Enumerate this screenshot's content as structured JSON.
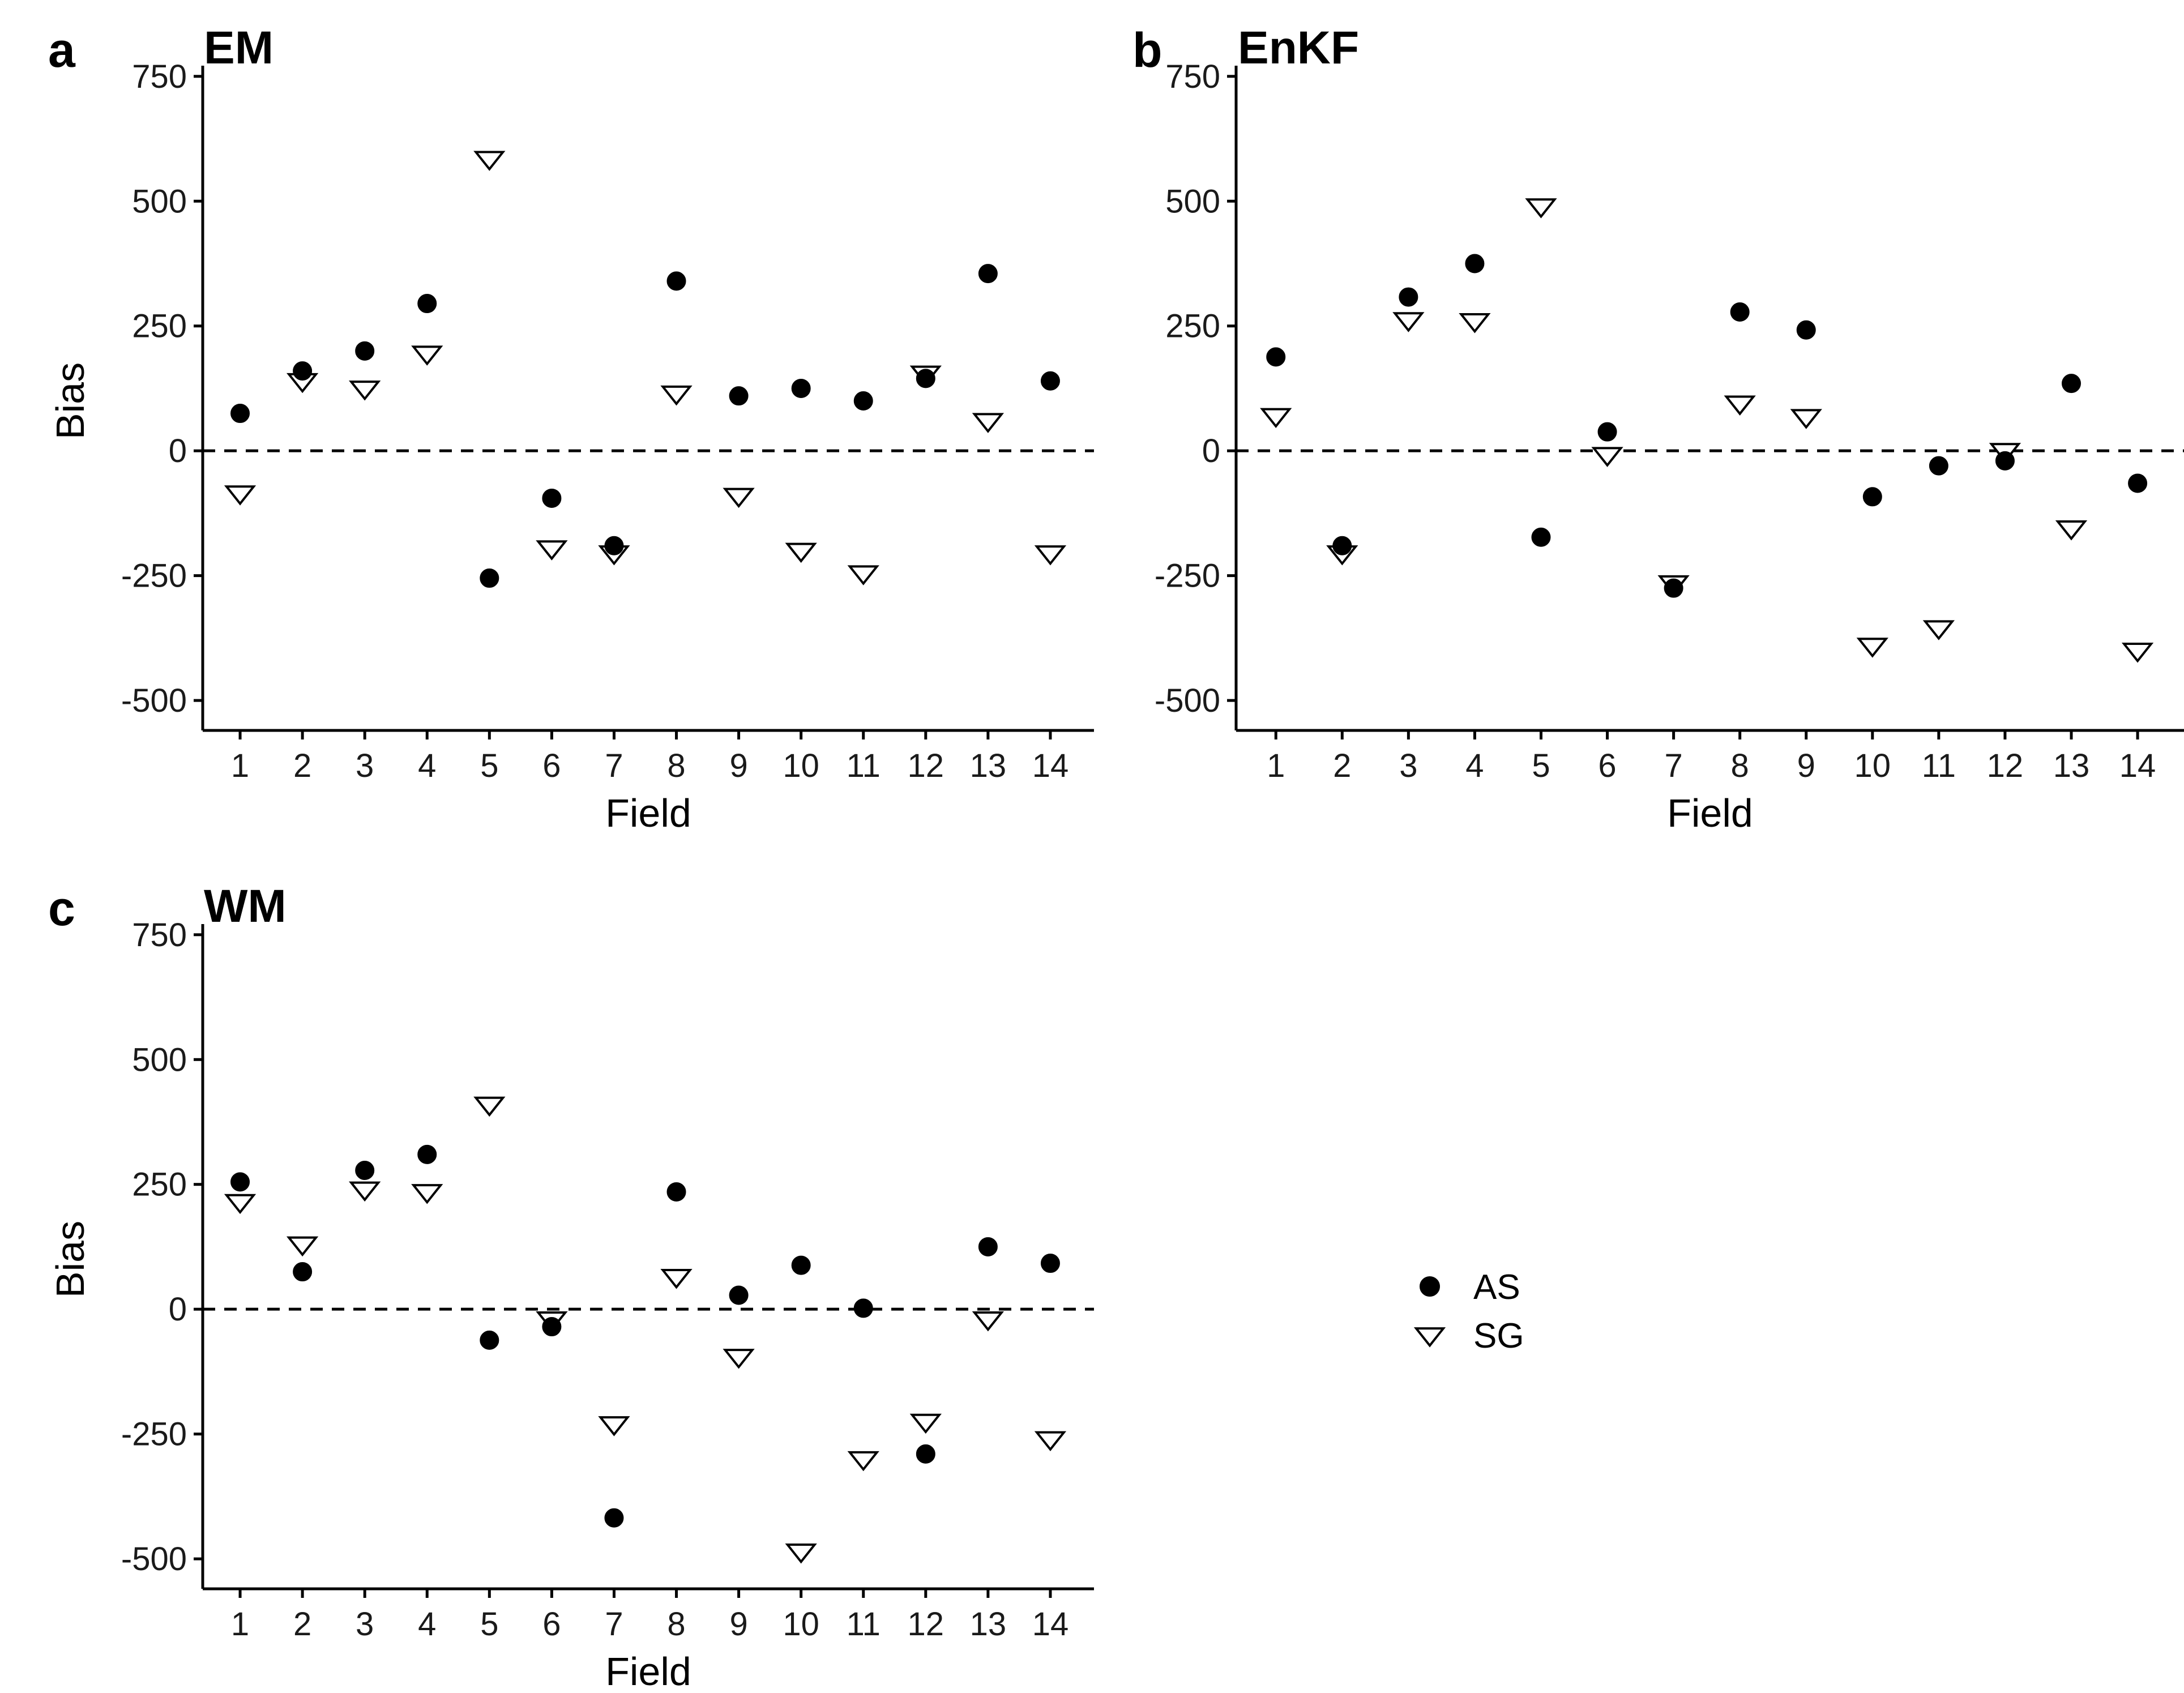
{
  "chart_data": [
    {
      "panel": "a",
      "title": "EM",
      "type": "scatter",
      "xlabel": "Field",
      "ylabel": "Bias",
      "ylim": [
        -560,
        760
      ],
      "yticks": [
        -500,
        -250,
        0,
        250,
        500,
        750
      ],
      "reference_line": 0,
      "categories": [
        "1",
        "2",
        "3",
        "4",
        "5",
        "6",
        "7",
        "8",
        "9",
        "10",
        "11",
        "12",
        "13",
        "14"
      ],
      "series": [
        {
          "name": "AS",
          "marker": "filled-circle",
          "values": [
            75,
            160,
            200,
            295,
            -255,
            -95,
            -190,
            340,
            110,
            125,
            100,
            145,
            355,
            140
          ]
        },
        {
          "name": "SG",
          "marker": "open-triangle-down",
          "values": [
            -85,
            140,
            125,
            195,
            585,
            -195,
            -205,
            115,
            -90,
            -200,
            -245,
            155,
            60,
            -205
          ]
        }
      ]
    },
    {
      "panel": "b",
      "title": "EnKF",
      "type": "scatter",
      "xlabel": "Field",
      "ylabel": "",
      "ylim": [
        -560,
        760
      ],
      "yticks": [
        -500,
        -250,
        0,
        250,
        500,
        750
      ],
      "reference_line": 0,
      "categories": [
        "1",
        "2",
        "3",
        "4",
        "5",
        "6",
        "7",
        "8",
        "9",
        "10",
        "11",
        "12",
        "13",
        "14"
      ],
      "series": [
        {
          "name": "AS",
          "marker": "filled-circle",
          "values": [
            188,
            -190,
            308,
            375,
            -173,
            38,
            -275,
            278,
            242,
            -92,
            -30,
            -20,
            135,
            -65
          ]
        },
        {
          "name": "SG",
          "marker": "open-triangle-down",
          "values": [
            70,
            -205,
            262,
            260,
            490,
            -8,
            -265,
            95,
            68,
            -390,
            -355,
            0,
            -155,
            -400
          ]
        }
      ]
    },
    {
      "panel": "c",
      "title": "WM",
      "type": "scatter",
      "xlabel": "Field",
      "ylabel": "Bias",
      "ylim": [
        -560,
        760
      ],
      "yticks": [
        -500,
        -250,
        0,
        250,
        500,
        750
      ],
      "reference_line": 0,
      "categories": [
        "1",
        "2",
        "3",
        "4",
        "5",
        "6",
        "7",
        "8",
        "9",
        "10",
        "11",
        "12",
        "13",
        "14"
      ],
      "series": [
        {
          "name": "AS",
          "marker": "filled-circle",
          "values": [
            255,
            75,
            278,
            310,
            -62,
            -35,
            -418,
            235,
            28,
            88,
            2,
            -290,
            125,
            92
          ]
        },
        {
          "name": "SG",
          "marker": "open-triangle-down",
          "values": [
            215,
            130,
            240,
            235,
            410,
            -20,
            -230,
            65,
            -95,
            -485,
            -300,
            -225,
            -20,
            -260
          ]
        }
      ]
    }
  ],
  "legend": {
    "items": [
      {
        "label": "AS",
        "marker": "filled-circle"
      },
      {
        "label": "SG",
        "marker": "open-triangle-down"
      }
    ]
  },
  "colors": {
    "as_fill": "#000000",
    "sg_fill": "#ffffff",
    "stroke": "#000000"
  }
}
